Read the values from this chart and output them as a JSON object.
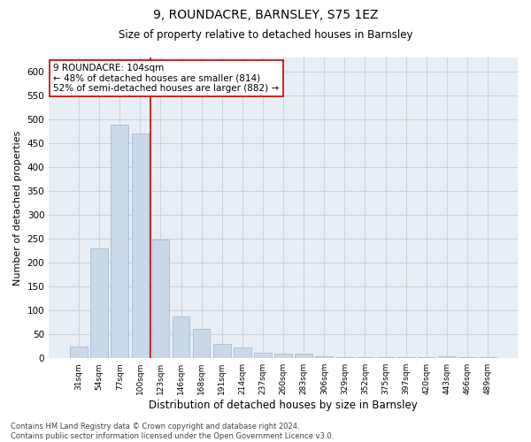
{
  "title1": "9, ROUNDACRE, BARNSLEY, S75 1EZ",
  "title2": "Size of property relative to detached houses in Barnsley",
  "xlabel": "Distribution of detached houses by size in Barnsley",
  "ylabel": "Number of detached properties",
  "bar_color": "#c9d9ea",
  "bar_edge_color": "#a8bece",
  "grid_color": "#c8d4e0",
  "bg_color": "#e8eef5",
  "vline_color": "#cc0000",
  "vline_pos": 3.5,
  "annotation_text_line1": "9 ROUNDACRE: 104sqm",
  "annotation_text_line2": "← 48% of detached houses are smaller (814)",
  "annotation_text_line3": "52% of semi-detached houses are larger (882) →",
  "annotation_box_color": "#ffffff",
  "annotation_box_edge": "#cc0000",
  "footnote": "Contains HM Land Registry data © Crown copyright and database right 2024.\nContains public sector information licensed under the Open Government Licence v3.0.",
  "categories": [
    "31sqm",
    "54sqm",
    "77sqm",
    "100sqm",
    "123sqm",
    "146sqm",
    "168sqm",
    "191sqm",
    "214sqm",
    "237sqm",
    "260sqm",
    "283sqm",
    "306sqm",
    "329sqm",
    "352sqm",
    "375sqm",
    "397sqm",
    "420sqm",
    "443sqm",
    "466sqm",
    "489sqm"
  ],
  "values": [
    25,
    230,
    490,
    470,
    248,
    88,
    62,
    30,
    22,
    12,
    10,
    10,
    5,
    3,
    3,
    3,
    2,
    2,
    5,
    2,
    3
  ],
  "ylim": [
    0,
    630
  ],
  "yticks": [
    0,
    50,
    100,
    150,
    200,
    250,
    300,
    350,
    400,
    450,
    500,
    550,
    600
  ]
}
